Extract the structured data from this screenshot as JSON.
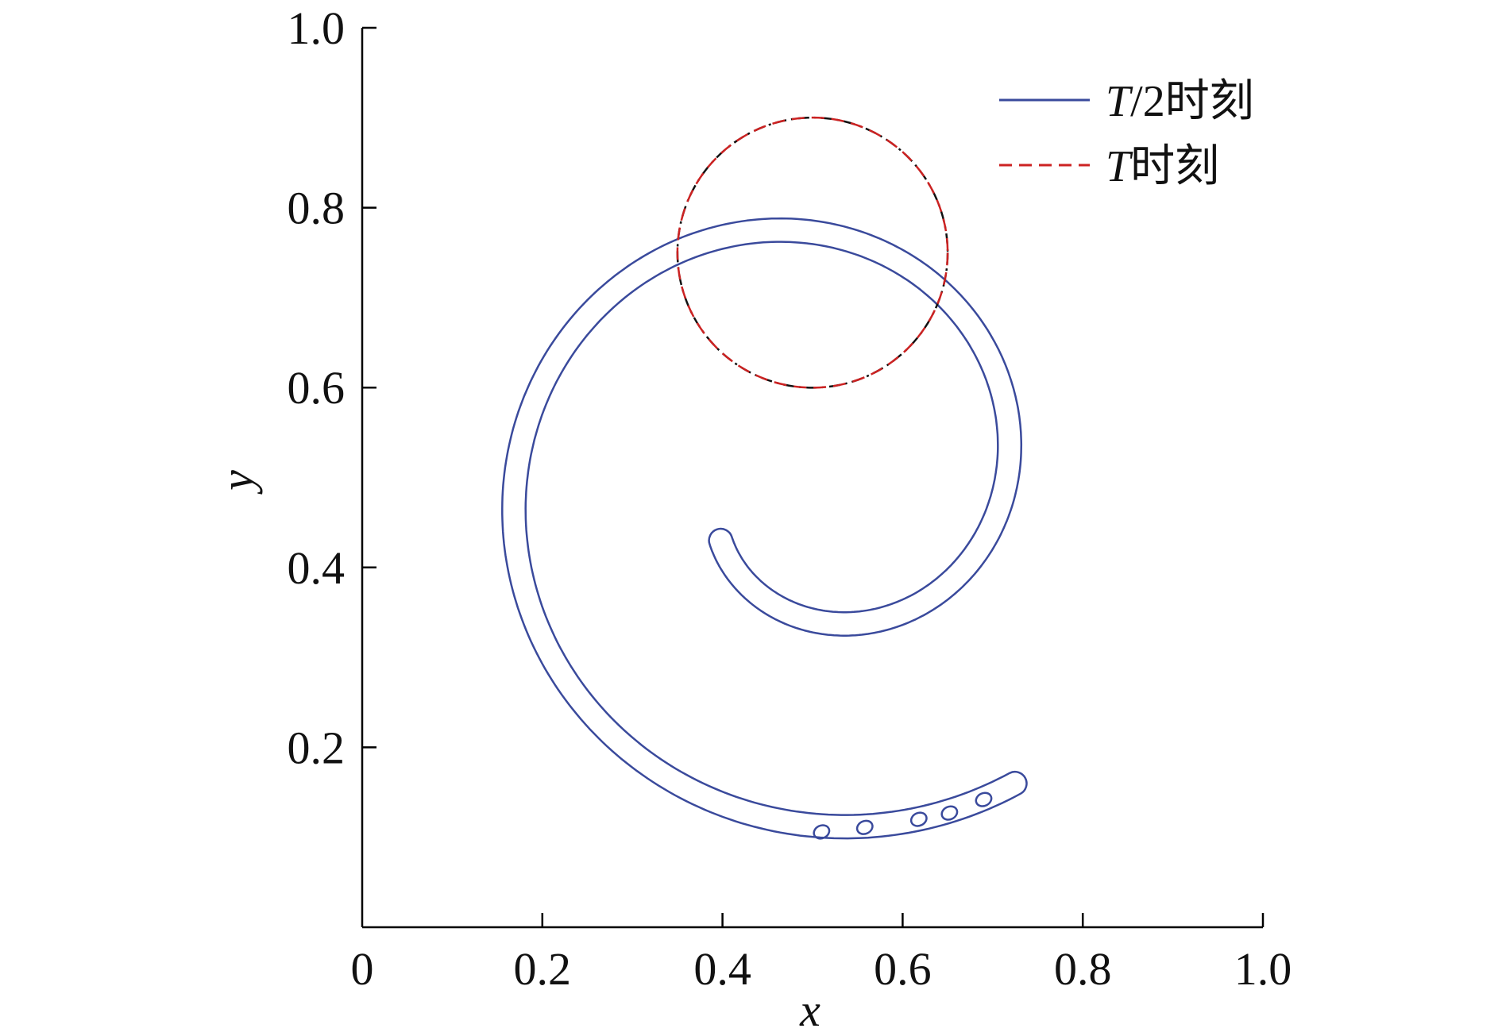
{
  "chart_data": {
    "type": "line",
    "xlabel": "x",
    "ylabel": "y",
    "xlim": [
      0,
      1.0
    ],
    "ylim": [
      0,
      1.0
    ],
    "xticks": [
      {
        "value": 0,
        "label": "0"
      },
      {
        "value": 0.2,
        "label": "0.2"
      },
      {
        "value": 0.4,
        "label": "0.4"
      },
      {
        "value": 0.6,
        "label": "0.6"
      },
      {
        "value": 0.8,
        "label": "0.8"
      },
      {
        "value": 1.0,
        "label": "1.0"
      }
    ],
    "yticks": [
      {
        "value": 0.2,
        "label": "0.2"
      },
      {
        "value": 0.4,
        "label": "0.4"
      },
      {
        "value": 0.6,
        "label": "0.6"
      },
      {
        "value": 0.8,
        "label": "0.8"
      },
      {
        "value": 1.0,
        "label": "1.0"
      }
    ],
    "grid": false,
    "legend_position": "top-right",
    "series": [
      {
        "name_italic": "T",
        "name_rest": "/2时刻",
        "color": "#3a4a9c",
        "dash": "solid",
        "shape": "spiral band",
        "center": [
          0.5,
          0.5
        ],
        "inner_start": [
          0.398,
          0.43
        ],
        "outer_end": [
          0.725,
          0.16
        ],
        "droplets": [
          {
            "x": 0.51,
            "y": 0.106
          },
          {
            "x": 0.558,
            "y": 0.111
          },
          {
            "x": 0.618,
            "y": 0.12
          },
          {
            "x": 0.652,
            "y": 0.127
          },
          {
            "x": 0.69,
            "y": 0.142
          }
        ]
      },
      {
        "name_italic": "T",
        "name_rest": "时刻",
        "color": "#cc2222",
        "dash": "dashed",
        "shape": "circle",
        "center": [
          0.5,
          0.75
        ],
        "radius": 0.15
      },
      {
        "color": "#111111",
        "dash": "dash-dot",
        "shape": "circle",
        "center": [
          0.5,
          0.75
        ],
        "radius": 0.15
      }
    ]
  }
}
